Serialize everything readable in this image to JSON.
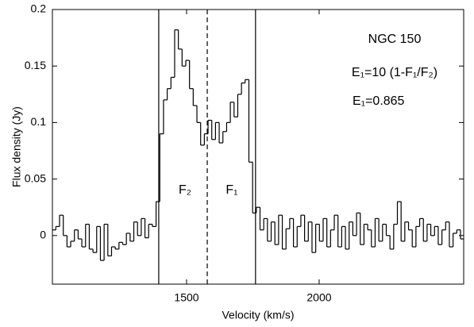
{
  "chart_data": {
    "type": "step",
    "x_label": "Velocity (km/s)",
    "y_label": "Flux density (Jy)",
    "xlim": [
      994,
      2545
    ],
    "ylim": [
      -0.043,
      0.2
    ],
    "xticks": [
      1500,
      2000
    ],
    "yticks": [
      0,
      0.05,
      0.1,
      0.15,
      0.2
    ],
    "color": "#000000",
    "x": [
      1000,
      1014,
      1028,
      1042,
      1056,
      1070,
      1084,
      1098,
      1112,
      1126,
      1140,
      1154,
      1168,
      1182,
      1196,
      1210,
      1224,
      1238,
      1252,
      1266,
      1280,
      1294,
      1308,
      1322,
      1336,
      1350,
      1364,
      1378,
      1392,
      1406,
      1420,
      1434,
      1448,
      1462,
      1476,
      1490,
      1504,
      1518,
      1532,
      1546,
      1560,
      1574,
      1588,
      1602,
      1616,
      1630,
      1644,
      1658,
      1672,
      1686,
      1700,
      1714,
      1728,
      1742,
      1756,
      1770,
      1784,
      1798,
      1812,
      1826,
      1840,
      1854,
      1868,
      1882,
      1896,
      1910,
      1924,
      1938,
      1952,
      1966,
      1980,
      1994,
      2008,
      2022,
      2036,
      2050,
      2064,
      2078,
      2092,
      2106,
      2120,
      2134,
      2148,
      2162,
      2176,
      2190,
      2204,
      2218,
      2232,
      2246,
      2260,
      2274,
      2288,
      2302,
      2316,
      2330,
      2344,
      2358,
      2372,
      2386,
      2400,
      2414,
      2428,
      2442,
      2456,
      2470,
      2484,
      2498,
      2512,
      2526,
      2540
    ],
    "values": [
      0.005,
      0.008,
      0.018,
      0.0,
      -0.01,
      -0.005,
      0.005,
      -0.003,
      -0.01,
      0.01,
      -0.012,
      -0.015,
      0.008,
      -0.022,
      0.01,
      -0.018,
      -0.01,
      -0.012,
      -0.006,
      -0.008,
      0.002,
      -0.005,
      0.012,
      0.0,
      0.015,
      -0.002,
      0.01,
      0.008,
      0.03,
      0.09,
      0.12,
      0.13,
      0.14,
      0.182,
      0.165,
      0.15,
      0.155,
      0.13,
      0.115,
      0.1,
      0.08,
      0.09,
      0.102,
      0.085,
      0.1,
      0.082,
      0.092,
      0.1,
      0.118,
      0.105,
      0.125,
      0.135,
      0.138,
      0.065,
      0.02,
      0.025,
      0.005,
      0.015,
      -0.005,
      0.012,
      -0.008,
      0.018,
      -0.012,
      0.006,
      0.015,
      -0.01,
      0.008,
      0.018,
      -0.005,
      0.012,
      -0.015,
      0.01,
      -0.005,
      0.015,
      -0.01,
      0.005,
      0.018,
      -0.01,
      0.008,
      -0.012,
      0.012,
      0.0,
      0.02,
      -0.008,
      0.01,
      0.005,
      -0.01,
      0.015,
      -0.005,
      0.01,
      0.0,
      -0.012,
      0.01,
      0.03,
      -0.005,
      0.012,
      0.005,
      -0.01,
      0.008,
      0.015,
      -0.005,
      0.01,
      0.0,
      0.008,
      -0.008,
      0.005,
      0.012,
      -0.01,
      0.002,
      0.005,
      -0.003
    ],
    "vlines": [
      {
        "value": 1395,
        "style": "solid"
      },
      {
        "value": 1578,
        "style": "dashed"
      },
      {
        "value": 1760,
        "style": "solid"
      }
    ],
    "annotations": [
      "NGC 150",
      "E₁=10 (1-F₁/F₂)",
      "E₁=0.865",
      "F₂",
      "F₁"
    ]
  }
}
